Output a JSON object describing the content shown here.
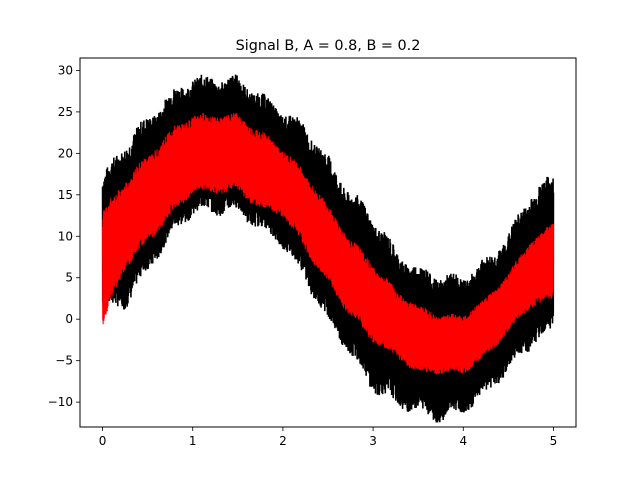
{
  "chart_data": {
    "type": "line",
    "title": "Signal B, A = 0.8, B = 0.2",
    "xlabel": "",
    "ylabel": "",
    "xlim": [
      -0.25,
      5.25
    ],
    "ylim": [
      -13,
      31.5
    ],
    "x_ticks": [
      0,
      1,
      2,
      3,
      4,
      5
    ],
    "x_tick_labels": [
      "0",
      "1",
      "2",
      "3",
      "4",
      "5"
    ],
    "y_ticks": [
      -10,
      -5,
      0,
      5,
      10,
      15,
      20,
      25,
      30
    ],
    "y_tick_labels": [
      "−10",
      "−5",
      "0",
      "5",
      "10",
      "15",
      "20",
      "25",
      "30"
    ],
    "grid": false,
    "legend": "none",
    "series": [
      {
        "color": "#000000",
        "x": [
          0,
          0.25,
          0.5,
          0.75,
          1.0,
          1.25,
          1.5,
          1.75,
          2.0,
          2.25,
          2.5,
          2.75,
          3.0,
          3.25,
          3.5,
          3.75,
          4.0,
          4.25,
          4.5,
          4.75,
          5.0
        ],
        "upper": [
          16,
          20,
          23,
          26,
          28,
          28,
          28,
          26,
          24,
          22,
          18,
          14,
          11,
          7,
          5,
          4,
          4,
          6,
          9,
          14,
          16
        ],
        "lower": [
          2,
          3,
          7,
          11,
          14,
          14,
          14,
          12,
          10,
          6,
          1,
          -3,
          -7,
          -9,
          -10,
          -11,
          -10,
          -8,
          -5,
          -2,
          0
        ]
      },
      {
        "color": "#ff0000",
        "x": [
          0,
          0.25,
          0.5,
          0.75,
          1.0,
          1.25,
          1.5,
          1.75,
          2.0,
          2.25,
          2.5,
          2.75,
          3.0,
          3.25,
          3.5,
          3.75,
          4.0,
          4.25,
          4.5,
          4.75,
          5.0
        ],
        "upper": [
          12,
          16,
          19,
          22,
          24,
          24,
          24,
          22,
          20,
          17,
          13,
          9,
          6,
          3,
          1,
          0,
          0,
          2,
          5,
          9,
          11
        ],
        "lower": [
          0,
          7,
          10,
          13,
          16,
          16,
          16,
          14,
          13,
          9,
          5,
          1,
          -2,
          -4,
          -6,
          -6,
          -6,
          -4,
          -1,
          2,
          3
        ]
      }
    ]
  }
}
